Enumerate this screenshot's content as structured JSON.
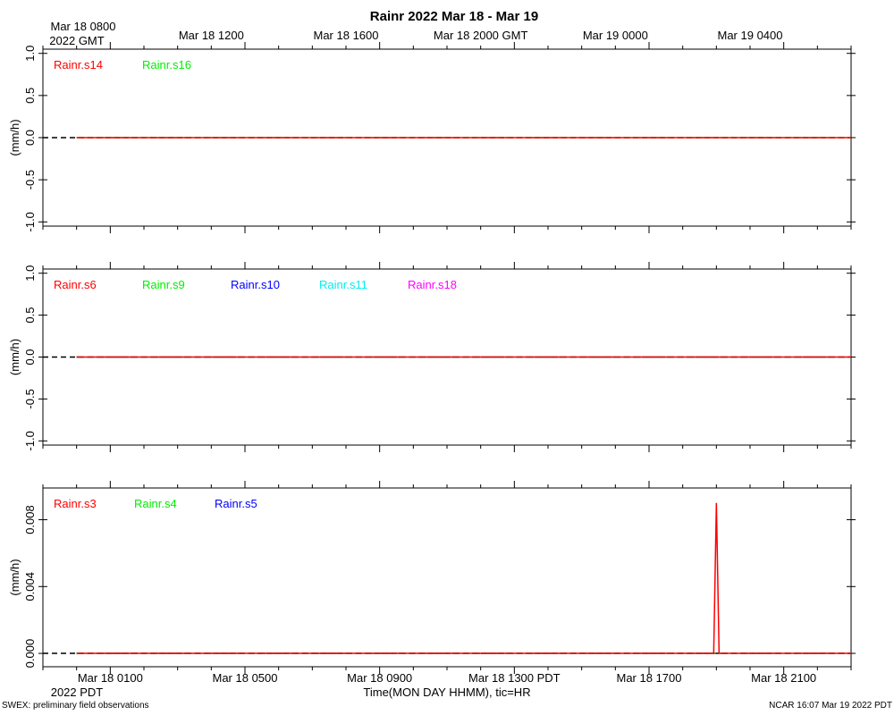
{
  "title": "Rainr 2022 Mar 18 - Mar 19",
  "top_axis": {
    "first_label_line1": "Mar 18 0800",
    "first_label_line2": "2022 GMT",
    "labels": [
      "Mar 18 1200",
      "Mar 18 1600",
      "Mar 18 2000 GMT",
      "Mar 19 0000",
      "Mar 19 0400"
    ]
  },
  "bottom_axis": {
    "labels": [
      "Mar 18 0100",
      "Mar 18 0500",
      "Mar 18 0900",
      "Mar 18 1300 PDT",
      "Mar 18 1700",
      "Mar 18 2100"
    ],
    "year_label": "2022 PDT",
    "xlabel": "Time(MON DAY HHMM), tic=HR"
  },
  "footer": {
    "left": "SWEX: preliminary field observations",
    "right": "NCAR 16:07 Mar 19 2022 PDT"
  },
  "chart_data": [
    {
      "type": "line",
      "ylabel": "(mm/h)",
      "ylim": [
        -1.05,
        1.05
      ],
      "yticks": [
        -1.0,
        -0.5,
        0.0,
        0.5,
        1.0
      ],
      "ytick_labels": [
        "-1.0",
        "-0.5",
        "0.0",
        "0.5",
        "1.0"
      ],
      "xlim_hours_pdt": [
        0,
        23
      ],
      "series": [
        {
          "name": "Rainr.s14",
          "color": "#ff0000",
          "x": [
            0,
            23
          ],
          "y": [
            0,
            0
          ]
        },
        {
          "name": "Rainr.s16",
          "color": "#00ee00",
          "x": [
            0,
            23
          ],
          "y": [
            0,
            0
          ]
        }
      ]
    },
    {
      "type": "line",
      "ylabel": "(mm/h)",
      "ylim": [
        -1.05,
        1.05
      ],
      "yticks": [
        -1.0,
        -0.5,
        0.0,
        0.5,
        1.0
      ],
      "ytick_labels": [
        "-1.0",
        "-0.5",
        "0.0",
        "0.5",
        "1.0"
      ],
      "xlim_hours_pdt": [
        0,
        23
      ],
      "series": [
        {
          "name": "Rainr.s6",
          "color": "#ff0000",
          "x": [
            0,
            23
          ],
          "y": [
            0,
            0
          ]
        },
        {
          "name": "Rainr.s9",
          "color": "#00ee00",
          "x": [
            0,
            23
          ],
          "y": [
            0,
            0
          ]
        },
        {
          "name": "Rainr.s10",
          "color": "#0000ff",
          "x": [
            0,
            23
          ],
          "y": [
            0,
            0
          ]
        },
        {
          "name": "Rainr.s11",
          "color": "#00eeee",
          "x": [
            0,
            23
          ],
          "y": [
            0,
            0
          ]
        },
        {
          "name": "Rainr.s18",
          "color": "#ff00ff",
          "x": [
            0,
            23
          ],
          "y": [
            0,
            0
          ]
        }
      ]
    },
    {
      "type": "line",
      "ylabel": "(mm/h)",
      "ylim": [
        -0.0008,
        0.0099
      ],
      "yticks": [
        0.0,
        0.004,
        0.008
      ],
      "ytick_labels": [
        "0.000",
        "0.004",
        "0.008"
      ],
      "xlim_hours_pdt": [
        0,
        23
      ],
      "series": [
        {
          "name": "Rainr.s3",
          "color": "#ff0000",
          "x": [
            0,
            18.92,
            19.0,
            19.08,
            23
          ],
          "y": [
            0,
            0,
            0.009,
            0,
            0
          ]
        },
        {
          "name": "Rainr.s4",
          "color": "#00ee00",
          "x": [
            0,
            23
          ],
          "y": [
            0,
            0
          ]
        },
        {
          "name": "Rainr.s5",
          "color": "#0000ff",
          "x": [
            0,
            23
          ],
          "y": [
            0,
            0
          ]
        }
      ]
    }
  ]
}
